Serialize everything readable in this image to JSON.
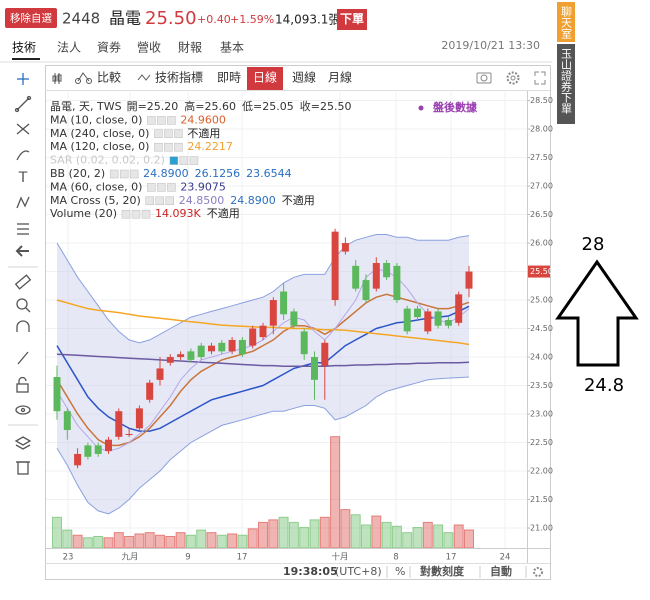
{
  "header": {
    "badge": "移除自選",
    "code": "2448",
    "name": "晶電",
    "price": "25.50",
    "change": "+0.40",
    "change_pct": "+1.59%",
    "volume": "14,093.1張",
    "order_button": "下單"
  },
  "tabs": [
    "技術",
    "法人",
    "資券",
    "營收",
    "財報",
    "基本"
  ],
  "datetime": "2019/10/21 13:30",
  "toolbar": {
    "compare": "比較",
    "indicators": "技術指標",
    "realtime": "即時",
    "periods": [
      "日線",
      "週線",
      "月線"
    ]
  },
  "legend": [
    {
      "label": "晶電, 天, TWS",
      "values": [
        "開=25.20",
        "高=25.60",
        "低=25.05",
        "收=25.50"
      ],
      "colors": [
        "#333333",
        "#333333",
        "#333333",
        "#333333"
      ]
    },
    {
      "label": "MA (10, close, 0)",
      "values": [
        "24.9600"
      ],
      "colors": [
        "#d9602e"
      ]
    },
    {
      "label": "MA (240, close, 0)",
      "values": [
        "不適用"
      ],
      "colors": [
        "#222222"
      ]
    },
    {
      "label": "MA (120, close, 0)",
      "values": [
        "24.2217"
      ],
      "colors": [
        "#f0a030"
      ]
    },
    {
      "label": "SAR (0.02, 0.02, 0.2)",
      "values": [],
      "colors": []
    },
    {
      "label": "BB (20, 2)",
      "values": [
        "24.8900",
        "26.1256",
        "23.6544"
      ],
      "colors": [
        "#2a6fc1",
        "#2a6fc1",
        "#2a6fc1"
      ]
    },
    {
      "label": "MA (60, close, 0)",
      "values": [
        "23.9075"
      ],
      "colors": [
        "#3a3a8c"
      ]
    },
    {
      "label": "MA Cross (5, 20)",
      "values": [
        "24.8500",
        "24.8900",
        "不適用"
      ],
      "colors": [
        "#8a7fc0",
        "#2a6fc1",
        "#222222"
      ]
    },
    {
      "label": "Volume (20)",
      "values": [
        "14.093K",
        "不適用"
      ],
      "colors": [
        "#cc2222",
        "#222222"
      ]
    }
  ],
  "after_hours": "盤後數據",
  "status": {
    "time": "19:38:05",
    "tz": "(UTC+8)",
    "percent": "%",
    "scale": "對數刻度",
    "auto": "自動"
  },
  "side_tabs": [
    "聊天室",
    "玉山證券下單"
  ],
  "annotation": {
    "top": "28",
    "bottom": "24.8"
  },
  "chart_data": {
    "type": "candlestick",
    "xlabels": [
      "23",
      "九月",
      "9",
      "17",
      "十月",
      "8",
      "17",
      "24"
    ],
    "up_color": "#d9463f",
    "down_color": "#5cb85c",
    "open": [
      23.65,
      23.05,
      22.1,
      22.45,
      22.45,
      22.35,
      22.6,
      22.65,
      22.75,
      23.25,
      23.6,
      23.9,
      24.0,
      24.1,
      24.2,
      24.1,
      24.25,
      24.1,
      24.3,
      24.2,
      24.35,
      24.55,
      25.15,
      24.8,
      24.45,
      24.0,
      23.85,
      25.0,
      25.85,
      25.6,
      25.35,
      25.2,
      25.65,
      25.6,
      24.85,
      24.85,
      24.45,
      24.8,
      24.65,
      24.6,
      25.2
    ],
    "high": [
      23.85,
      23.1,
      22.4,
      22.5,
      22.5,
      22.6,
      23.1,
      22.75,
      23.15,
      23.6,
      24.0,
      24.05,
      24.1,
      24.15,
      24.25,
      24.25,
      24.3,
      24.35,
      24.35,
      24.55,
      24.6,
      25.05,
      25.3,
      24.85,
      24.5,
      24.1,
      24.3,
      26.25,
      26.1,
      25.7,
      25.45,
      25.75,
      25.7,
      25.65,
      24.9,
      24.9,
      24.85,
      24.85,
      24.7,
      25.15,
      25.6
    ],
    "low": [
      22.9,
      22.55,
      22.05,
      22.2,
      22.25,
      22.3,
      22.55,
      22.6,
      22.7,
      23.2,
      23.5,
      23.85,
      23.95,
      23.9,
      23.95,
      24.05,
      24.05,
      24.05,
      24.0,
      24.15,
      24.3,
      24.4,
      24.65,
      24.5,
      23.95,
      23.25,
      23.25,
      24.9,
      25.8,
      25.15,
      24.95,
      25.15,
      25.35,
      24.95,
      24.4,
      24.65,
      24.4,
      24.5,
      24.5,
      24.55,
      25.05
    ],
    "close": [
      23.05,
      22.72,
      22.3,
      22.25,
      22.3,
      22.55,
      23.05,
      22.65,
      23.1,
      23.55,
      23.8,
      24.0,
      24.05,
      23.95,
      24.0,
      24.2,
      24.1,
      24.3,
      24.05,
      24.5,
      24.55,
      25.0,
      24.75,
      24.55,
      24.05,
      23.6,
      24.25,
      26.2,
      26.0,
      25.2,
      25.0,
      25.65,
      25.4,
      25.0,
      24.45,
      24.7,
      24.8,
      24.55,
      24.55,
      25.1,
      25.5
    ],
    "volume": [
      24,
      14,
      10,
      8,
      9,
      8,
      12,
      9,
      11,
      12,
      10,
      9,
      12,
      10,
      14,
      12,
      10,
      11,
      10,
      15,
      20,
      22,
      24,
      20,
      16,
      22,
      24,
      87,
      30,
      26,
      18,
      25,
      20,
      17,
      12,
      16,
      20,
      18,
      12,
      18,
      14.093
    ],
    "band_fill": "#c9cdeb",
    "lines": [
      {
        "color": "#8aa0e0",
        "values": [
          26.0,
          25.7,
          25.4,
          25.15,
          24.9,
          24.65,
          24.45,
          24.3,
          24.25,
          24.3,
          24.4,
          24.5,
          24.6,
          24.7,
          24.75,
          24.8,
          24.85,
          24.9,
          24.95,
          25.0,
          25.05,
          25.15,
          25.3,
          25.4,
          25.45,
          25.45,
          25.45,
          25.75,
          25.95,
          26.05,
          26.1,
          26.15,
          26.15,
          26.1,
          26.1,
          26.05,
          26.05,
          26.05,
          26.05,
          26.1,
          26.13
        ]
      },
      {
        "color": "#2a55c8",
        "values": [
          24.2,
          23.9,
          23.6,
          23.3,
          23.1,
          22.95,
          22.85,
          22.75,
          22.7,
          22.7,
          22.75,
          22.85,
          22.95,
          23.05,
          23.15,
          23.25,
          23.3,
          23.35,
          23.4,
          23.45,
          23.5,
          23.6,
          23.7,
          23.8,
          23.85,
          23.9,
          23.9,
          24.05,
          24.2,
          24.3,
          24.4,
          24.5,
          24.55,
          24.6,
          24.62,
          24.65,
          24.68,
          24.7,
          24.72,
          24.8,
          24.89
        ]
      },
      {
        "color": "#8aa0e0",
        "values": [
          22.4,
          22.1,
          21.75,
          21.45,
          21.3,
          21.25,
          21.35,
          21.5,
          21.7,
          21.85,
          22.0,
          22.2,
          22.35,
          22.5,
          22.6,
          22.7,
          22.8,
          22.85,
          22.9,
          22.95,
          23.0,
          23.05,
          23.05,
          23.1,
          23.15,
          23.15,
          23.1,
          22.9,
          22.95,
          23.05,
          23.15,
          23.3,
          23.4,
          23.45,
          23.5,
          23.55,
          23.6,
          23.62,
          23.63,
          23.64,
          23.65
        ]
      },
      {
        "color": "#c9753c",
        "values": [
          23.6,
          23.3,
          23.0,
          22.75,
          22.55,
          22.45,
          22.45,
          22.5,
          22.6,
          22.75,
          22.95,
          23.15,
          23.4,
          23.6,
          23.75,
          23.85,
          23.95,
          24.0,
          24.05,
          24.1,
          24.2,
          24.3,
          24.45,
          24.55,
          24.55,
          24.5,
          24.4,
          24.5,
          24.65,
          24.8,
          24.95,
          25.05,
          25.1,
          25.05,
          25.0,
          24.95,
          24.9,
          24.85,
          24.85,
          24.9,
          24.96
        ]
      },
      {
        "color": "#f5a623",
        "values": [
          25.0,
          24.95,
          24.9,
          24.85,
          24.82,
          24.8,
          24.78,
          24.75,
          24.72,
          24.7,
          24.68,
          24.66,
          24.64,
          24.62,
          24.6,
          24.58,
          24.56,
          24.55,
          24.54,
          24.53,
          24.52,
          24.52,
          24.51,
          24.5,
          24.5,
          24.49,
          24.48,
          24.48,
          24.47,
          24.45,
          24.43,
          24.41,
          24.39,
          24.37,
          24.35,
          24.33,
          24.31,
          24.29,
          24.27,
          24.25,
          24.22
        ]
      },
      {
        "color": "#6a5aa0",
        "values": [
          24.05,
          24.04,
          24.03,
          24.02,
          24.01,
          24.0,
          23.99,
          23.98,
          23.97,
          23.96,
          23.95,
          23.94,
          23.93,
          23.92,
          23.91,
          23.9,
          23.89,
          23.88,
          23.87,
          23.86,
          23.85,
          23.85,
          23.84,
          23.84,
          23.84,
          23.84,
          23.84,
          23.85,
          23.85,
          23.86,
          23.86,
          23.87,
          23.87,
          23.88,
          23.88,
          23.89,
          23.89,
          23.9,
          23.9,
          23.9,
          23.91
        ]
      },
      {
        "color": "#b3a8e8",
        "values": [
          23.4,
          23.1,
          22.8,
          22.6,
          22.4,
          22.35,
          22.4,
          22.5,
          22.65,
          22.8,
          23.05,
          23.3,
          23.6,
          23.8,
          23.95,
          24.0,
          24.05,
          24.1,
          24.15,
          24.2,
          24.3,
          24.45,
          24.6,
          24.7,
          24.65,
          24.45,
          24.3,
          24.5,
          24.75,
          25.0,
          25.4,
          25.55,
          25.5,
          25.4,
          25.2,
          24.95,
          24.75,
          24.65,
          24.6,
          24.7,
          24.85
        ]
      }
    ],
    "ylim": [
      20.65,
      28.65
    ],
    "yticks": [
      {
        "value": 21,
        "label": "21.00"
      },
      {
        "value": 21.5,
        "label": "21.50"
      },
      {
        "value": 22,
        "label": "22.00"
      },
      {
        "value": 22.5,
        "label": "22.50"
      },
      {
        "value": 23,
        "label": "23.00"
      },
      {
        "value": 23.5,
        "label": "23.50"
      },
      {
        "value": 24,
        "label": "24.00"
      },
      {
        "value": 24.5,
        "label": "24.50"
      },
      {
        "value": 25,
        "label": "25.00"
      },
      {
        "value": 25.5,
        "label": "25.50"
      },
      {
        "value": 26,
        "label": "26.00"
      },
      {
        "value": 26.5,
        "label": "26.50"
      },
      {
        "value": 27,
        "label": "27.00"
      },
      {
        "value": 27.5,
        "label": "27.50"
      },
      {
        "value": 28,
        "label": "28.00"
      },
      {
        "value": 28.5,
        "label": "28.50"
      }
    ],
    "grid": true
  }
}
